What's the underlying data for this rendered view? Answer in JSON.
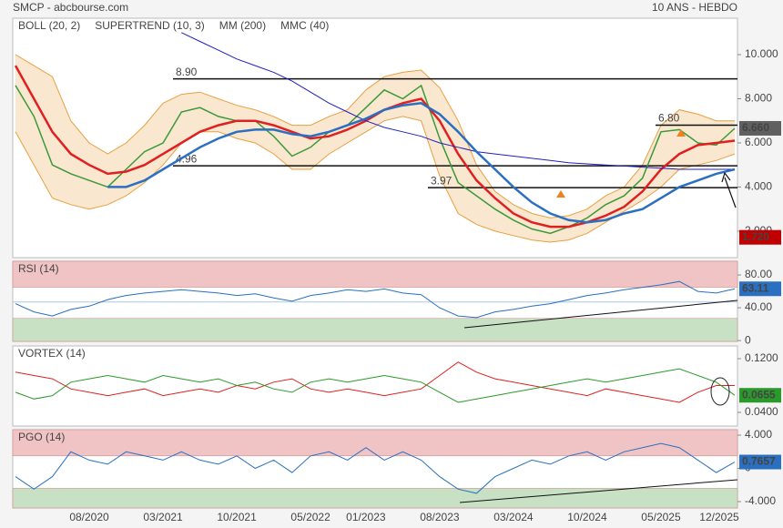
{
  "header": {
    "source": "SMCP - abcbourse.com",
    "period": "10 ANS - HEBDO"
  },
  "chart_data": [
    {
      "type": "line",
      "ylim": [
        0.8,
        11.65
      ],
      "yticks": [
        {
          "value": 2,
          "label": "2.000"
        },
        {
          "value": 4,
          "label": "4.000"
        },
        {
          "value": 6,
          "label": "6.000"
        },
        {
          "value": 8,
          "label": "8.000"
        },
        {
          "value": 10,
          "label": "10.000"
        }
      ],
      "bands": {
        "name": "BOLL (20, 2)",
        "color": "#e8a040",
        "upper": [
          10,
          9.5,
          9,
          7,
          6,
          5.5,
          6,
          6.8,
          7.8,
          8.2,
          8.3,
          8,
          7.7,
          7.5,
          7.2,
          6.8,
          6.8,
          7.2,
          7.5,
          8.4,
          9,
          9.2,
          9.3,
          8.5,
          7,
          5,
          3.8,
          3.2,
          2.8,
          2.6,
          2.7,
          3,
          3.6,
          4,
          5,
          6.8,
          7.5,
          7.3,
          7,
          7
        ],
        "lower": [
          6.5,
          5,
          3.5,
          3.2,
          3,
          3.2,
          3.6,
          4.2,
          5,
          6,
          6.5,
          6.5,
          6.2,
          6,
          5.5,
          4.8,
          4.8,
          5.5,
          6,
          6.5,
          7,
          7.2,
          7,
          4.5,
          2.8,
          2.3,
          2,
          1.8,
          1.6,
          1.5,
          1.6,
          1.9,
          2.4,
          2.9,
          3.4,
          4,
          4.8,
          5,
          5.2,
          5.5
        ]
      },
      "series": [
        {
          "color": "#3a9a3a",
          "width": 1.5,
          "values": [
            8.6,
            7.2,
            5.0,
            4.6,
            4.3,
            4.0,
            4.8,
            5.6,
            6.0,
            7.4,
            7.6,
            7.2,
            7.0,
            7.0,
            6.3,
            5.4,
            5.8,
            6.5,
            6.8,
            7.6,
            8.4,
            8.0,
            8.6,
            6.2,
            4.2,
            3.6,
            3.0,
            2.5,
            2.1,
            1.9,
            2.2,
            2.6,
            3.2,
            3.6,
            4.4,
            6.5,
            6.6,
            6.0,
            5.9,
            6.66
          ]
        },
        {
          "name": "SUPERTREND (10, 3)",
          "color": "#e02020",
          "width": 2.5,
          "values": [
            9.5,
            8,
            6.5,
            5.5,
            5,
            4.6,
            4.7,
            5,
            5.5,
            6,
            6.5,
            6.8,
            7,
            7,
            6.8,
            6.5,
            6.2,
            6.3,
            6.6,
            7,
            7.5,
            7.8,
            8,
            7,
            5.5,
            4.3,
            3.5,
            2.8,
            2.4,
            2.2,
            2.2,
            2.4,
            2.7,
            3.1,
            3.8,
            4.8,
            5.5,
            5.9,
            6,
            6.1
          ]
        },
        {
          "name": "MM (200)",
          "color": "#2020c0",
          "width": 1,
          "values": [
            null,
            null,
            null,
            null,
            null,
            null,
            null,
            null,
            null,
            11,
            10.6,
            10.2,
            9.8,
            9.5,
            9.2,
            8.8,
            8.3,
            7.8,
            7.4,
            7.0,
            6.7,
            6.5,
            6.3,
            6.0,
            5.8,
            5.6,
            5.5,
            5.4,
            5.3,
            5.2,
            5.1,
            5.05,
            5.0,
            4.95,
            4.9,
            4.85,
            4.8,
            4.8,
            4.8,
            4.8
          ]
        },
        {
          "name": "MMC (40)",
          "color": "#2a6fc0",
          "width": 2.5,
          "values": [
            null,
            null,
            null,
            null,
            null,
            4.0,
            4.0,
            4.3,
            4.8,
            5.3,
            5.8,
            6.2,
            6.5,
            6.6,
            6.6,
            6.4,
            6.3,
            6.5,
            6.8,
            7.1,
            7.5,
            7.7,
            7.8,
            7.3,
            6.5,
            5.6,
            4.8,
            4.0,
            3.3,
            2.8,
            2.5,
            2.4,
            2.5,
            2.8,
            3.0,
            3.5,
            4.0,
            4.3,
            4.6,
            4.8
          ]
        }
      ],
      "levels": [
        {
          "value": 8.9,
          "label": "8.90"
        },
        4.96,
        3.97,
        {
          "value": 6.8,
          "label": "6.80"
        }
      ],
      "tags": [
        {
          "value": 6.66,
          "label": "6.660",
          "color": "#606060"
        },
        {
          "value": 1.72,
          "label": "1.720",
          "color": "#c00000"
        }
      ]
    },
    {
      "type": "line",
      "title": "RSI (14)",
      "ylim": [
        -1,
        96.7
      ],
      "yticks": [
        0,
        {
          "value": 40,
          "label": "40.00"
        },
        {
          "value": 80,
          "label": "80.00"
        }
      ],
      "zones": [
        {
          "from": 65,
          "to": 96.7,
          "color": "#f0c4c4"
        },
        {
          "from": -1,
          "to": 27,
          "color": "#c8e0c4"
        }
      ],
      "midline": 47,
      "series": [
        {
          "color": "#2a6fc0",
          "width": 1,
          "values": [
            45,
            35,
            30,
            38,
            42,
            50,
            55,
            58,
            60,
            62,
            60,
            58,
            55,
            57,
            52,
            48,
            55,
            58,
            62,
            60,
            63,
            58,
            56,
            40,
            30,
            28,
            35,
            38,
            42,
            45,
            50,
            55,
            58,
            62,
            65,
            68,
            72,
            60,
            58,
            63.11
          ]
        }
      ],
      "tag_color": "#2a6fc0"
    },
    {
      "type": "line",
      "title": "VORTEX (14)",
      "ylim": [
        0.0197,
        0.139
      ],
      "yticks": [
        {
          "value": 0.04,
          "label": "0.0400"
        },
        {
          "value": 0.12,
          "label": "0.1200"
        }
      ],
      "series": [
        {
          "color": "#e02020",
          "width": 1,
          "values": [
            0.1,
            0.095,
            0.09,
            0.075,
            0.07,
            0.065,
            0.07,
            0.075,
            0.065,
            0.07,
            0.075,
            0.07,
            0.08,
            0.075,
            0.085,
            0.09,
            0.075,
            0.07,
            0.075,
            0.07,
            0.065,
            0.07,
            0.075,
            0.095,
            0.115,
            0.1,
            0.09,
            0.085,
            0.08,
            0.075,
            0.07,
            0.065,
            0.075,
            0.07,
            0.065,
            0.06,
            0.055,
            0.07,
            0.08,
            0.08
          ]
        },
        {
          "color": "#2a9a2a",
          "width": 1,
          "values": [
            0.07,
            0.06,
            0.065,
            0.085,
            0.09,
            0.095,
            0.09,
            0.085,
            0.095,
            0.09,
            0.085,
            0.09,
            0.08,
            0.085,
            0.075,
            0.07,
            0.085,
            0.09,
            0.085,
            0.09,
            0.095,
            0.09,
            0.085,
            0.07,
            0.055,
            0.06,
            0.065,
            0.07,
            0.075,
            0.08,
            0.085,
            0.09,
            0.085,
            0.09,
            0.095,
            0.1,
            0.105,
            0.095,
            0.085,
            0.0655
          ]
        }
      ],
      "tag_color": "#2a9a2a"
    },
    {
      "type": "line",
      "title": "PGO (14)",
      "ylim": [
        -4.77,
        4.66
      ],
      "yticks": [
        {
          "value": -4,
          "label": "-4.000"
        },
        0,
        {
          "value": 4,
          "label": "4.000"
        }
      ],
      "zones": [
        {
          "from": 1.5,
          "to": 4.66,
          "color": "#f0c4c4"
        },
        {
          "from": -4.77,
          "to": -2.4,
          "color": "#c8e0c4"
        }
      ],
      "series": [
        {
          "color": "#2a6fc0",
          "width": 1,
          "values": [
            -1,
            -2.5,
            -1,
            2,
            1,
            0.5,
            2,
            1.5,
            1,
            2,
            1,
            0.5,
            1.5,
            0,
            1,
            -0.5,
            1.5,
            2,
            1,
            2.5,
            1,
            2,
            1,
            -1,
            -2.5,
            -3,
            -1,
            0,
            1,
            0.5,
            1.5,
            2,
            1,
            2,
            2.5,
            3,
            2.5,
            1,
            -0.5,
            0.7657
          ]
        }
      ],
      "tag_color": "#2a6fc0",
      "categories": [
        null,
        null,
        null,
        null,
        "08/2020",
        null,
        null,
        null,
        "03/2021",
        null,
        null,
        null,
        "10/2021",
        null,
        null,
        null,
        "05/2022",
        null,
        null,
        "01/2023",
        null,
        null,
        null,
        "08/2023",
        null,
        null,
        null,
        "03/2024",
        null,
        null,
        null,
        "10/2024",
        null,
        null,
        null,
        "05/2025",
        null,
        null,
        null,
        "12/2025"
      ]
    }
  ]
}
